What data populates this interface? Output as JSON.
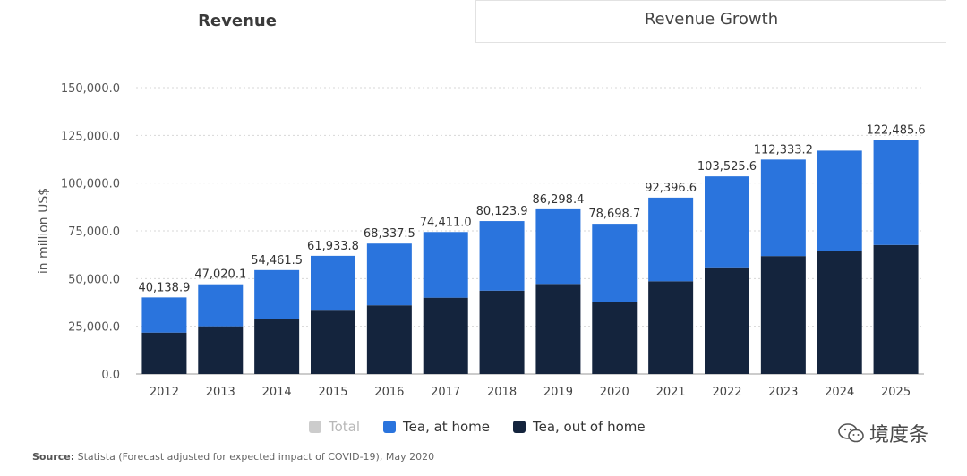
{
  "tabs": [
    {
      "label": "Revenue",
      "active": true
    },
    {
      "label": "Revenue Growth",
      "active": false
    }
  ],
  "chart_data": {
    "type": "bar",
    "stacked": true,
    "categories": [
      "2012",
      "2013",
      "2014",
      "2015",
      "2016",
      "2017",
      "2018",
      "2019",
      "2020",
      "2021",
      "2022",
      "2023",
      "2024",
      "2025"
    ],
    "series": [
      {
        "name": "Tea, out of home",
        "color": "#14243d",
        "values": [
          21700,
          25000,
          29000,
          33200,
          36000,
          40000,
          43700,
          47200,
          37700,
          48600,
          55900,
          61800,
          64600,
          67600
        ]
      },
      {
        "name": "Tea, at home",
        "color": "#2a74dd",
        "values": [
          18438.9,
          22020.1,
          25461.5,
          28733.8,
          32337.5,
          34411.0,
          36423.9,
          39098.4,
          40998.7,
          43796.6,
          47625.6,
          50533.2,
          52400.0,
          54885.6
        ]
      }
    ],
    "totals": [
      "40,138.9",
      "47,020.1",
      "54,461.5",
      "61,933.8",
      "68,337.5",
      "74,411.0",
      "80,123.9",
      "86,298.4",
      "78,698.7",
      "92,396.6",
      "103,525.6",
      "112,333.2",
      "",
      "122,485.6"
    ],
    "ylabel": "in million US$",
    "ylim": [
      0,
      150000
    ],
    "yticks": [
      "0.0",
      "25,000.0",
      "50,000.0",
      "75,000.0",
      "100,000.0",
      "125,000.0",
      "150,000.0"
    ],
    "ytick_values": [
      0,
      25000,
      50000,
      75000,
      100000,
      125000,
      150000
    ]
  },
  "legend": [
    {
      "label": "Total",
      "color": "#cccccc",
      "disabled": true
    },
    {
      "label": "Tea, at home",
      "color": "#2a74dd",
      "disabled": false
    },
    {
      "label": "Tea, out of home",
      "color": "#14243d",
      "disabled": false
    }
  ],
  "source": {
    "prefix": "Source:",
    "text": "Statista (Forecast adjusted for expected impact of COVID-19), May 2020"
  },
  "watermark": {
    "text": "境度条"
  }
}
